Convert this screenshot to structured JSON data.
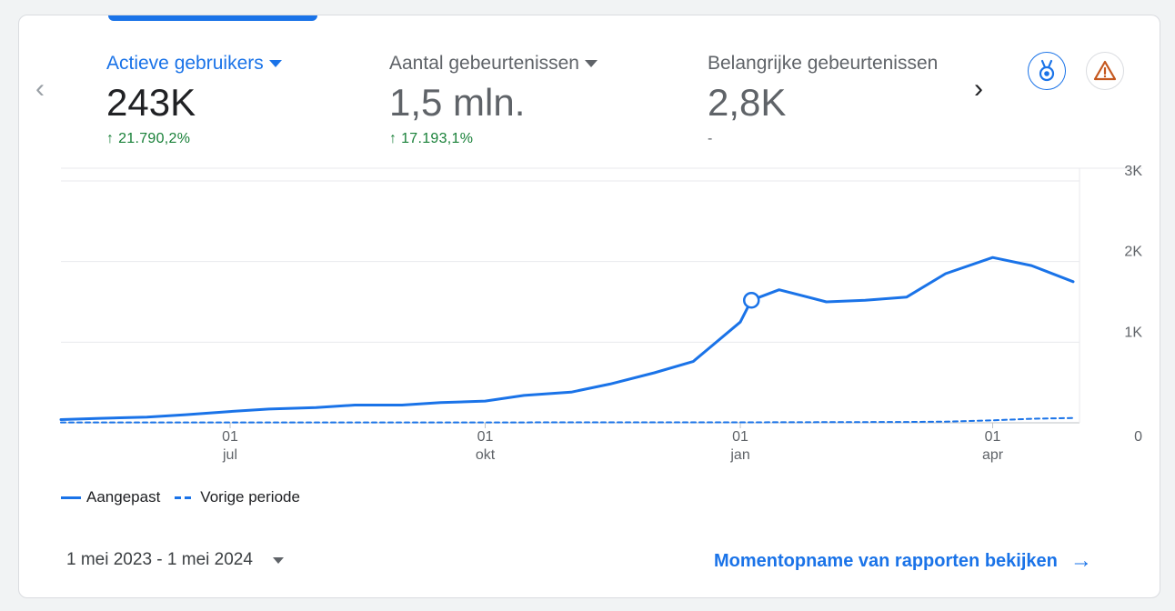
{
  "metrics": [
    {
      "label": "Actieve gebruikers",
      "value": "243K",
      "delta": "21.790,2%",
      "trend": "up"
    },
    {
      "label": "Aantal gebeurtenissen",
      "value": "1,5 mln.",
      "delta": "17.193,1%",
      "trend": "up"
    },
    {
      "label": "Belangrijke gebeurtenissen",
      "value": "2,8K",
      "delta": "-",
      "trend": "none"
    }
  ],
  "icons": {
    "nav_prev": "chevron-left-icon",
    "nav_next": "chevron-right-icon",
    "badge": "medal-icon",
    "warning": "warning-icon",
    "link_arrow": "arrow-right-icon"
  },
  "colors": {
    "accent": "#1a73e8",
    "positive": "#188038",
    "warning": "#c5221f"
  },
  "legend": {
    "current": "Aangepast",
    "previous": "Vorige periode"
  },
  "date_range": "1 mei 2023 - 1 mei 2024",
  "snapshot_link": "Momentopname van rapporten bekijken",
  "chart_data": {
    "type": "line",
    "y_ticks": [
      "0",
      "1K",
      "2K",
      "3K"
    ],
    "ylim": [
      0,
      3000
    ],
    "x_ticks": [
      {
        "day": "01",
        "month": "jul",
        "date": "2023-07-01"
      },
      {
        "day": "01",
        "month": "okt",
        "date": "2023-10-01"
      },
      {
        "day": "01",
        "month": "jan",
        "date": "2024-01-01"
      },
      {
        "day": "01",
        "month": "apr",
        "date": "2024-04-01"
      }
    ],
    "xlim": [
      "2023-05-01",
      "2024-05-01"
    ],
    "grid": true,
    "legend_position": "bottom-left",
    "highlight_point": {
      "date": "2024-01-05",
      "value": 1520
    },
    "series": [
      {
        "name": "Aangepast",
        "style": "solid",
        "points": [
          [
            "2023-05-01",
            40
          ],
          [
            "2023-05-15",
            55
          ],
          [
            "2023-06-01",
            70
          ],
          [
            "2023-06-15",
            100
          ],
          [
            "2023-07-01",
            140
          ],
          [
            "2023-07-15",
            170
          ],
          [
            "2023-08-01",
            190
          ],
          [
            "2023-08-15",
            220
          ],
          [
            "2023-09-01",
            220
          ],
          [
            "2023-09-15",
            250
          ],
          [
            "2023-10-01",
            270
          ],
          [
            "2023-10-15",
            340
          ],
          [
            "2023-11-01",
            380
          ],
          [
            "2023-11-15",
            480
          ],
          [
            "2023-12-01",
            620
          ],
          [
            "2023-12-15",
            760
          ],
          [
            "2024-01-01",
            1250
          ],
          [
            "2024-01-05",
            1520
          ],
          [
            "2024-01-15",
            1650
          ],
          [
            "2024-02-01",
            1500
          ],
          [
            "2024-02-15",
            1520
          ],
          [
            "2024-03-01",
            1560
          ],
          [
            "2024-03-15",
            1850
          ],
          [
            "2024-04-01",
            2050
          ],
          [
            "2024-04-15",
            1950
          ],
          [
            "2024-04-30",
            1750
          ]
        ]
      },
      {
        "name": "Vorige periode",
        "style": "dashed",
        "points": [
          [
            "2023-05-01",
            5
          ],
          [
            "2023-09-01",
            5
          ],
          [
            "2024-01-01",
            6
          ],
          [
            "2024-03-01",
            10
          ],
          [
            "2024-03-15",
            15
          ],
          [
            "2024-04-01",
            30
          ],
          [
            "2024-04-15",
            50
          ],
          [
            "2024-04-30",
            60
          ]
        ]
      }
    ]
  }
}
